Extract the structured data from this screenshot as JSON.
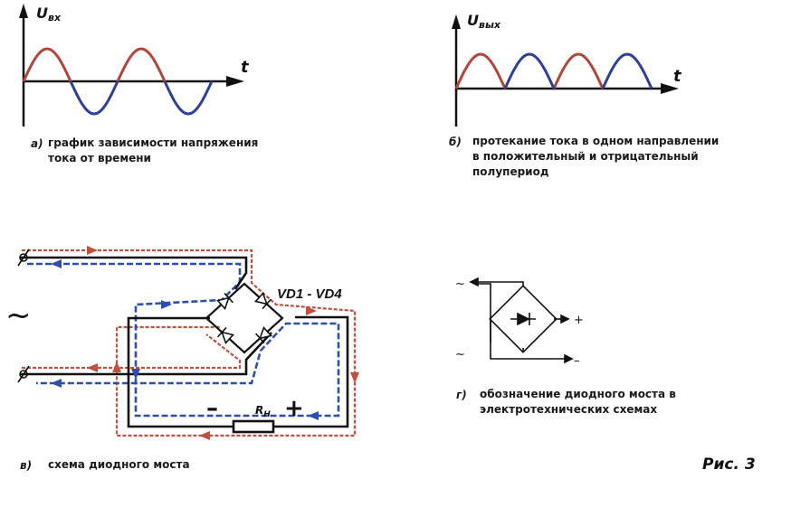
{
  "graph_a": {
    "y_label_main": "U",
    "y_label_sub": "вх",
    "x_label": "t",
    "letter": "а)",
    "caption_line1": "график зависимости напряжения",
    "caption_line2": "тока от времени"
  },
  "graph_b": {
    "y_label_main": "U",
    "y_label_sub": "вых",
    "x_label": "t",
    "letter": "б)",
    "caption_line1": "протекание тока в одном направлении",
    "caption_line2": "в положительный и отрицательный",
    "caption_line3": "полупериод"
  },
  "bridge_circuit": {
    "component_label": "VD1 - VD4",
    "minus": "–",
    "plus": "+",
    "load_main": "R",
    "load_sub": "Н",
    "ac_symbol": "~",
    "letter": "в)",
    "caption": "схема диодного моста"
  },
  "bridge_symbol": {
    "ac_top": "~",
    "ac_bottom": "~",
    "plus": "+",
    "minus": "–",
    "letter": "г)",
    "caption_line1": "обозначение диодного моста в",
    "caption_line2": "электротехнических схемах"
  },
  "figure_label": "Рис. 3",
  "colors": {
    "positive_half": "#b0473a",
    "negative_half": "#2e3f9a",
    "current_red": "#c0503f",
    "current_blue": "#2f4fb0",
    "wire": "#111111"
  }
}
